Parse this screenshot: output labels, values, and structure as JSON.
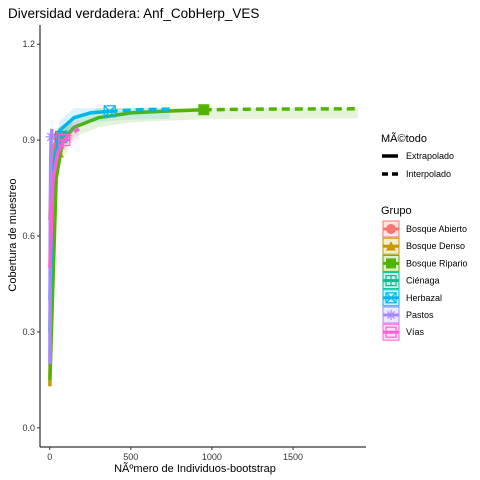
{
  "chart_data": {
    "type": "line",
    "title": "Diversidad verdadera: Anf_CobHerp_VES",
    "xlabel": "NÃºmero de Individuos-bootstrap",
    "ylabel": "Cobertura de muestreo",
    "xlim": [
      -60,
      1950
    ],
    "ylim": [
      -0.06,
      1.26
    ],
    "x_ticks": [
      0,
      500,
      1000,
      1500
    ],
    "y_ticks": [
      0.0,
      0.3,
      0.6,
      0.9,
      1.2
    ],
    "y_tick_labels": [
      "0.0",
      "0.3",
      "0.6",
      "0.9",
      "1.2"
    ],
    "grid": false,
    "legend_method": {
      "title": "MÃ©todo",
      "items": [
        {
          "label": "Extrapolado",
          "style": "solid"
        },
        {
          "label": "Interpolado",
          "style": "dashed"
        }
      ]
    },
    "legend_group": {
      "title": "Grupo",
      "placement": "right"
    },
    "series": [
      {
        "name": "Bosque Abierto",
        "color": "#F8766D",
        "marker": "circle",
        "interpolated": [
          [
            1,
            0.65
          ],
          [
            10,
            0.82
          ],
          [
            25,
            0.88
          ],
          [
            40,
            0.9
          ],
          [
            56,
            0.91
          ]
        ],
        "extrapolated": [
          [
            56,
            0.91
          ],
          [
            80,
            0.92
          ],
          [
            112,
            0.925
          ]
        ],
        "observed": [
          56,
          0.91
        ]
      },
      {
        "name": "Bosque Denso",
        "color": "#C49A00",
        "marker": "triangle",
        "interpolated": [
          [
            1,
            0.13
          ],
          [
            8,
            0.55
          ],
          [
            20,
            0.75
          ],
          [
            40,
            0.84
          ],
          [
            55,
            0.86
          ]
        ],
        "extrapolated": [
          [
            55,
            0.86
          ],
          [
            80,
            0.88
          ],
          [
            110,
            0.89
          ]
        ],
        "observed": [
          55,
          0.86
        ]
      },
      {
        "name": "Bosque Ripario",
        "color": "#53B400",
        "marker": "square",
        "interpolated": [
          [
            1,
            0.15
          ],
          [
            40,
            0.78
          ],
          [
            80,
            0.9
          ],
          [
            150,
            0.94
          ],
          [
            300,
            0.97
          ],
          [
            500,
            0.985
          ],
          [
            700,
            0.99
          ],
          [
            950,
            0.995
          ]
        ],
        "extrapolated": [
          [
            950,
            0.995
          ],
          [
            1300,
            0.997
          ],
          [
            1900,
            0.998
          ]
        ],
        "observed": [
          950,
          0.995
        ]
      },
      {
        "name": "Ciénaga",
        "color": "#00C094",
        "marker": "plus",
        "interpolated": [
          [
            1,
            0.3
          ],
          [
            15,
            0.75
          ],
          [
            35,
            0.86
          ],
          [
            60,
            0.9
          ],
          [
            70,
            0.91
          ]
        ],
        "extrapolated": [
          [
            70,
            0.91
          ],
          [
            100,
            0.925
          ],
          [
            140,
            0.93
          ]
        ],
        "observed": [
          70,
          0.91
        ]
      },
      {
        "name": "Herbazal",
        "color": "#00B6EB",
        "marker": "square-x",
        "interpolated": [
          [
            1,
            0.4
          ],
          [
            20,
            0.8
          ],
          [
            60,
            0.93
          ],
          [
            150,
            0.97
          ],
          [
            250,
            0.985
          ],
          [
            370,
            0.99
          ]
        ],
        "extrapolated": [
          [
            370,
            0.99
          ],
          [
            550,
            0.995
          ],
          [
            740,
            0.997
          ]
        ],
        "observed": [
          370,
          0.99
        ]
      },
      {
        "name": "Pastos",
        "color": "#A58AFF",
        "marker": "asterisk",
        "interpolated": [
          [
            1,
            0.2
          ],
          [
            3,
            0.6
          ],
          [
            6,
            0.85
          ],
          [
            9,
            0.91
          ]
        ],
        "extrapolated": [
          [
            9,
            0.91
          ],
          [
            13,
            0.93
          ],
          [
            18,
            0.94
          ]
        ],
        "observed": [
          9,
          0.91
        ]
      },
      {
        "name": "Vías",
        "color": "#FB61D7",
        "marker": "square-minus",
        "interpolated": [
          [
            1,
            0.5
          ],
          [
            20,
            0.78
          ],
          [
            50,
            0.86
          ],
          [
            90,
            0.9
          ]
        ],
        "extrapolated": [
          [
            90,
            0.9
          ],
          [
            130,
            0.92
          ],
          [
            180,
            0.935
          ]
        ],
        "observed": [
          90,
          0.9
        ]
      }
    ]
  }
}
